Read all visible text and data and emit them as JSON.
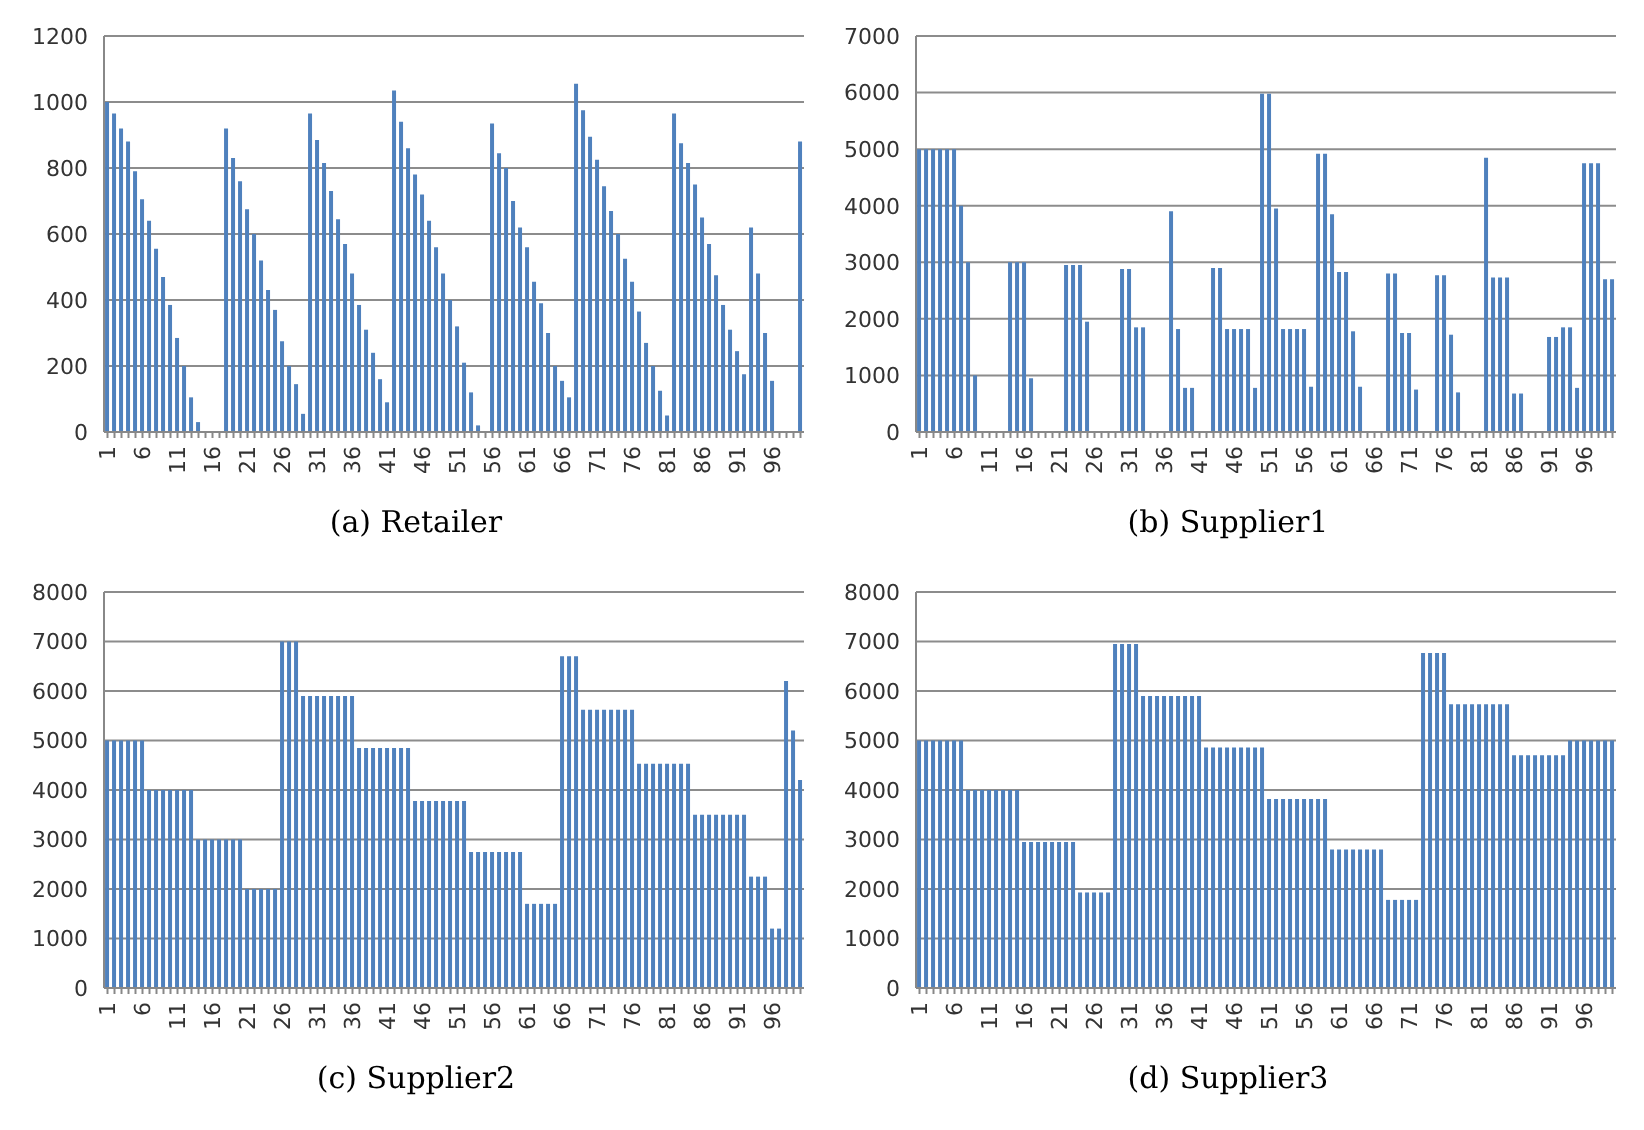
{
  "chart_data": [
    {
      "type": "bar",
      "title": "(a) Retailer",
      "color": "#4f81bd",
      "grid": "y",
      "ylim": [
        0,
        1200
      ],
      "yticks": [
        0,
        200,
        400,
        600,
        800,
        1000,
        1200
      ],
      "categories": [
        "1",
        null,
        null,
        null,
        null,
        "6",
        null,
        null,
        null,
        null,
        "11",
        null,
        null,
        null,
        null,
        "16",
        null,
        null,
        null,
        null,
        "21",
        null,
        null,
        null,
        null,
        "26",
        null,
        null,
        null,
        null,
        "31",
        null,
        null,
        null,
        null,
        "36",
        null,
        null,
        null,
        null,
        "41",
        null,
        null,
        null,
        null,
        "46",
        null,
        null,
        null,
        null,
        "51",
        null,
        null,
        null,
        null,
        "56",
        null,
        null,
        null,
        null,
        "61",
        null,
        null,
        null,
        null,
        "66",
        null,
        null,
        null,
        null,
        "71",
        null,
        null,
        null,
        null,
        "76",
        null,
        null,
        null,
        null,
        "81",
        null,
        null,
        null,
        null,
        "86",
        null,
        null,
        null,
        null,
        "91",
        null,
        null,
        null,
        null,
        "96",
        null,
        null,
        null,
        null
      ],
      "values": [
        1000,
        965,
        920,
        880,
        790,
        705,
        640,
        555,
        470,
        385,
        285,
        200,
        105,
        30,
        0,
        0,
        0,
        920,
        830,
        760,
        675,
        600,
        520,
        430,
        370,
        275,
        200,
        145,
        55,
        965,
        885,
        815,
        730,
        645,
        570,
        480,
        385,
        310,
        240,
        160,
        90,
        1035,
        940,
        860,
        780,
        720,
        640,
        560,
        480,
        400,
        320,
        210,
        120,
        20,
        0,
        935,
        845,
        800,
        700,
        620,
        560,
        455,
        390,
        300,
        200,
        155,
        105,
        1055,
        975,
        895,
        825,
        745,
        670,
        600,
        525,
        455,
        365,
        270,
        200,
        125,
        50,
        965,
        875,
        815,
        750,
        650,
        570,
        475,
        385,
        310,
        245,
        175,
        620,
        480,
        300,
        155,
        0,
        0,
        0,
        880
      ]
    },
    {
      "type": "bar",
      "title": "(b) Supplier1",
      "color": "#4f81bd",
      "grid": "y",
      "ylim": [
        0,
        7000
      ],
      "yticks": [
        0,
        1000,
        2000,
        3000,
        4000,
        5000,
        6000,
        7000
      ],
      "categories": [
        "1",
        null,
        null,
        null,
        null,
        "6",
        null,
        null,
        null,
        null,
        "11",
        null,
        null,
        null,
        null,
        "16",
        null,
        null,
        null,
        null,
        "21",
        null,
        null,
        null,
        null,
        "26",
        null,
        null,
        null,
        null,
        "31",
        null,
        null,
        null,
        null,
        "36",
        null,
        null,
        null,
        null,
        "41",
        null,
        null,
        null,
        null,
        "46",
        null,
        null,
        null,
        null,
        "51",
        null,
        null,
        null,
        null,
        "56",
        null,
        null,
        null,
        null,
        "61",
        null,
        null,
        null,
        null,
        "66",
        null,
        null,
        null,
        null,
        "71",
        null,
        null,
        null,
        null,
        "76",
        null,
        null,
        null,
        null,
        "81",
        null,
        null,
        null,
        null,
        "86",
        null,
        null,
        null,
        null,
        "91",
        null,
        null,
        null,
        null,
        "96",
        null,
        null,
        null,
        null
      ],
      "values": [
        5000,
        5000,
        5000,
        5000,
        5000,
        5000,
        4000,
        3000,
        1000,
        0,
        0,
        0,
        0,
        3000,
        3000,
        3000,
        950,
        0,
        0,
        0,
        0,
        2950,
        2950,
        2950,
        1950,
        0,
        0,
        0,
        0,
        2880,
        2880,
        1850,
        1850,
        0,
        0,
        0,
        3900,
        1820,
        780,
        780,
        0,
        0,
        2900,
        2900,
        1820,
        1820,
        1820,
        1820,
        780,
        5980,
        5980,
        3950,
        1820,
        1820,
        1820,
        1820,
        800,
        4920,
        4920,
        3850,
        2830,
        2830,
        1780,
        800,
        0,
        0,
        0,
        2800,
        2800,
        1750,
        1750,
        750,
        0,
        0,
        2770,
        2770,
        1720,
        700,
        0,
        0,
        0,
        4850,
        2730,
        2730,
        2730,
        680,
        680,
        0,
        0,
        0,
        1680,
        1680,
        1850,
        1850,
        780,
        4750,
        4750,
        4750,
        2700,
        2700
      ]
    },
    {
      "type": "bar",
      "title": "(c) Supplier2",
      "color": "#4f81bd",
      "grid": "y",
      "ylim": [
        0,
        8000
      ],
      "yticks": [
        0,
        1000,
        2000,
        3000,
        4000,
        5000,
        6000,
        7000,
        8000
      ],
      "categories": [
        "1",
        null,
        null,
        null,
        null,
        "6",
        null,
        null,
        null,
        null,
        "11",
        null,
        null,
        null,
        null,
        "16",
        null,
        null,
        null,
        null,
        "21",
        null,
        null,
        null,
        null,
        "26",
        null,
        null,
        null,
        null,
        "31",
        null,
        null,
        null,
        null,
        "36",
        null,
        null,
        null,
        null,
        "41",
        null,
        null,
        null,
        null,
        "46",
        null,
        null,
        null,
        null,
        "51",
        null,
        null,
        null,
        null,
        "56",
        null,
        null,
        null,
        null,
        "61",
        null,
        null,
        null,
        null,
        "66",
        null,
        null,
        null,
        null,
        "71",
        null,
        null,
        null,
        null,
        "76",
        null,
        null,
        null,
        null,
        "81",
        null,
        null,
        null,
        null,
        "86",
        null,
        null,
        null,
        null,
        "91",
        null,
        null,
        null,
        null,
        "96",
        null,
        null,
        null,
        null
      ],
      "values": [
        5000,
        5000,
        5000,
        5000,
        5000,
        5000,
        4000,
        4000,
        4000,
        4000,
        4000,
        4000,
        4000,
        3000,
        3000,
        3000,
        3000,
        3000,
        3000,
        3000,
        2000,
        2000,
        2000,
        2000,
        2000,
        7000,
        7000,
        7000,
        5900,
        5900,
        5900,
        5900,
        5900,
        5900,
        5900,
        5900,
        4850,
        4850,
        4850,
        4850,
        4850,
        4850,
        4850,
        4850,
        3780,
        3780,
        3780,
        3780,
        3780,
        3780,
        3780,
        3780,
        2750,
        2750,
        2750,
        2750,
        2750,
        2750,
        2750,
        2750,
        1700,
        1700,
        1700,
        1700,
        1700,
        6700,
        6700,
        6700,
        5620,
        5620,
        5620,
        5620,
        5620,
        5620,
        5620,
        5620,
        4530,
        4530,
        4530,
        4530,
        4530,
        4530,
        4530,
        4530,
        3500,
        3500,
        3500,
        3500,
        3500,
        3500,
        3500,
        3500,
        2250,
        2250,
        2250,
        1200,
        1200,
        6200,
        5200,
        4200
      ]
    },
    {
      "type": "bar",
      "title": "(d) Supplier3",
      "color": "#4f81bd",
      "grid": "y",
      "ylim": [
        0,
        8000
      ],
      "yticks": [
        0,
        1000,
        2000,
        3000,
        4000,
        5000,
        6000,
        7000,
        8000
      ],
      "categories": [
        "1",
        null,
        null,
        null,
        null,
        "6",
        null,
        null,
        null,
        null,
        "11",
        null,
        null,
        null,
        null,
        "16",
        null,
        null,
        null,
        null,
        "21",
        null,
        null,
        null,
        null,
        "26",
        null,
        null,
        null,
        null,
        "31",
        null,
        null,
        null,
        null,
        "36",
        null,
        null,
        null,
        null,
        "41",
        null,
        null,
        null,
        null,
        "46",
        null,
        null,
        null,
        null,
        "51",
        null,
        null,
        null,
        null,
        "56",
        null,
        null,
        null,
        null,
        "61",
        null,
        null,
        null,
        null,
        "66",
        null,
        null,
        null,
        null,
        "71",
        null,
        null,
        null,
        null,
        "76",
        null,
        null,
        null,
        null,
        "81",
        null,
        null,
        null,
        null,
        "86",
        null,
        null,
        null,
        null,
        "91",
        null,
        null,
        null,
        null,
        "96",
        null,
        null,
        null,
        null
      ],
      "values": [
        5000,
        5000,
        5000,
        5000,
        5000,
        5000,
        5000,
        4000,
        4000,
        4000,
        4000,
        4000,
        4000,
        4000,
        4000,
        2950,
        2950,
        2950,
        2950,
        2950,
        2950,
        2950,
        2950,
        1930,
        1930,
        1930,
        1930,
        1930,
        6950,
        6950,
        6950,
        6950,
        5900,
        5900,
        5900,
        5900,
        5900,
        5900,
        5900,
        5900,
        5900,
        4860,
        4860,
        4860,
        4860,
        4860,
        4860,
        4860,
        4860,
        4860,
        3820,
        3820,
        3820,
        3820,
        3820,
        3820,
        3820,
        3820,
        3820,
        2800,
        2800,
        2800,
        2800,
        2800,
        2800,
        2800,
        2800,
        1780,
        1780,
        1780,
        1780,
        1780,
        6770,
        6770,
        6770,
        6770,
        5730,
        5730,
        5730,
        5730,
        5730,
        5730,
        5730,
        5730,
        5730,
        4700,
        4700,
        4700,
        4700,
        4700,
        4700,
        4700,
        4700,
        5000,
        5000,
        5000,
        5000,
        5000,
        5000,
        5000
      ]
    }
  ]
}
